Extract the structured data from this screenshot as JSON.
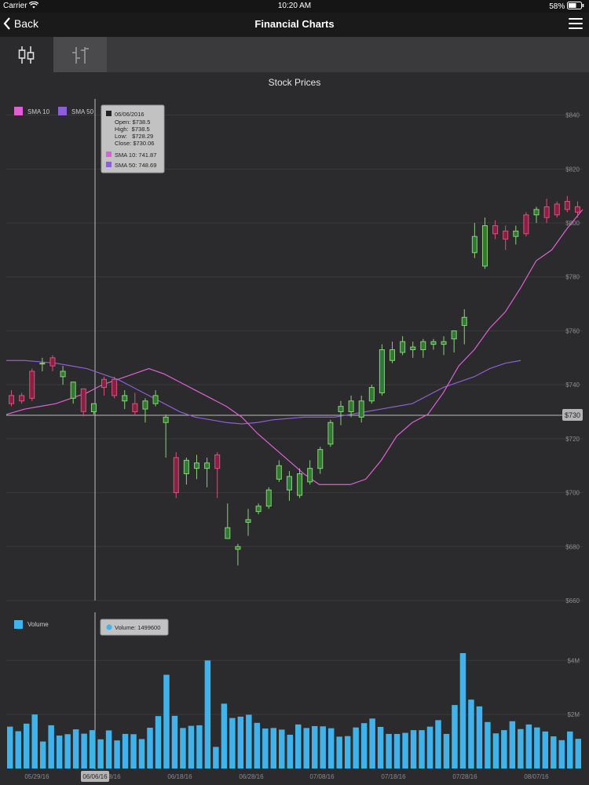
{
  "status_bar": {
    "carrier": "Carrier",
    "time": "10:20 AM",
    "battery": "58%"
  },
  "nav": {
    "back_label": "Back",
    "title": "Financial Charts"
  },
  "tabs": [
    {
      "icon": "candlestick-icon"
    },
    {
      "icon": "ohlc-icon"
    }
  ],
  "chart_data": [
    {
      "type": "candlestick",
      "title": "Stock Prices",
      "ylim": [
        660,
        846
      ],
      "y_ticks": [
        "$660",
        "$680",
        "$700",
        "$720",
        "$740",
        "$760",
        "$780",
        "$800",
        "$820",
        "$840"
      ],
      "x_ticks": [
        "05/29/16",
        "06/08/16",
        "06/18/16",
        "06/28/16",
        "07/08/16",
        "07/18/16",
        "07/28/16",
        "08/07/16"
      ],
      "crosshair_price": "$730",
      "crosshair_date": "06/06/16",
      "legend": [
        {
          "name": "SMA 10",
          "color": "#e05fd6"
        },
        {
          "name": "SMA 50",
          "color": "#8e5ed6"
        }
      ],
      "tooltip": {
        "date": "06/06/2016",
        "open": "Open: $738.5",
        "high": "High:  $738.5",
        "low": "Low:   $728.29",
        "close": "Close: $730.06",
        "sma10": "SMA 10: 741.87",
        "sma50": "SMA 50: 748.69"
      },
      "candles": [
        {
          "o": 736,
          "c": 733,
          "h": 738,
          "l": 732
        },
        {
          "o": 736,
          "c": 734,
          "h": 737,
          "l": 733
        },
        {
          "o": 745,
          "c": 735,
          "h": 746,
          "l": 734
        },
        {
          "o": 748,
          "c": 748,
          "h": 750,
          "l": 745
        },
        {
          "o": 750,
          "c": 747,
          "h": 751,
          "l": 745
        },
        {
          "o": 743,
          "c": 745,
          "h": 747,
          "l": 740
        },
        {
          "o": 735,
          "c": 741,
          "h": 741,
          "l": 733
        },
        {
          "o": 738.5,
          "c": 730.06,
          "h": 738.5,
          "l": 728.29
        },
        {
          "o": 730,
          "c": 733,
          "h": 733,
          "l": 729
        },
        {
          "o": 742,
          "c": 739,
          "h": 743,
          "l": 736
        },
        {
          "o": 742,
          "c": 736,
          "h": 743,
          "l": 735
        },
        {
          "o": 734,
          "c": 736,
          "h": 738,
          "l": 731
        },
        {
          "o": 733,
          "c": 730,
          "h": 737,
          "l": 729
        },
        {
          "o": 731,
          "c": 734,
          "h": 735,
          "l": 726
        },
        {
          "o": 733,
          "c": 736,
          "h": 738,
          "l": 732
        },
        {
          "o": 726,
          "c": 728,
          "h": 729,
          "l": 713
        },
        {
          "o": 713,
          "c": 700,
          "h": 715,
          "l": 698
        },
        {
          "o": 707,
          "c": 712,
          "h": 713,
          "l": 703
        },
        {
          "o": 709,
          "c": 711,
          "h": 714,
          "l": 705
        },
        {
          "o": 709,
          "c": 711,
          "h": 713,
          "l": 702
        },
        {
          "o": 714,
          "c": 709,
          "h": 715,
          "l": 698
        },
        {
          "o": 683,
          "c": 687,
          "h": 696,
          "l": 683
        },
        {
          "o": 679,
          "c": 680,
          "h": 681,
          "l": 673
        },
        {
          "o": 689,
          "c": 690,
          "h": 694,
          "l": 684
        },
        {
          "o": 693,
          "c": 695,
          "h": 696,
          "l": 692
        },
        {
          "o": 695,
          "c": 701,
          "h": 702,
          "l": 694
        },
        {
          "o": 705,
          "c": 710,
          "h": 712,
          "l": 704
        },
        {
          "o": 701,
          "c": 706,
          "h": 708,
          "l": 697
        },
        {
          "o": 699,
          "c": 707,
          "h": 709,
          "l": 698
        },
        {
          "o": 704,
          "c": 709,
          "h": 712,
          "l": 703
        },
        {
          "o": 709,
          "c": 716,
          "h": 717,
          "l": 707
        },
        {
          "o": 718,
          "c": 726,
          "h": 727,
          "l": 717
        },
        {
          "o": 730,
          "c": 732,
          "h": 734,
          "l": 725
        },
        {
          "o": 730,
          "c": 734,
          "h": 736,
          "l": 728
        },
        {
          "o": 728,
          "c": 734,
          "h": 736,
          "l": 726
        },
        {
          "o": 734,
          "c": 739,
          "h": 740,
          "l": 733
        },
        {
          "o": 737,
          "c": 753,
          "h": 755,
          "l": 736
        },
        {
          "o": 749,
          "c": 753,
          "h": 756,
          "l": 748
        },
        {
          "o": 752,
          "c": 756,
          "h": 758,
          "l": 751
        },
        {
          "o": 753,
          "c": 754,
          "h": 756,
          "l": 750
        },
        {
          "o": 753,
          "c": 756,
          "h": 757,
          "l": 750
        },
        {
          "o": 755,
          "c": 756,
          "h": 757,
          "l": 753
        },
        {
          "o": 755,
          "c": 756,
          "h": 758,
          "l": 751
        },
        {
          "o": 757,
          "c": 760,
          "h": 760,
          "l": 752
        },
        {
          "o": 762,
          "c": 765,
          "h": 768,
          "l": 755
        },
        {
          "o": 789,
          "c": 795,
          "h": 800,
          "l": 787
        },
        {
          "o": 784,
          "c": 799,
          "h": 802,
          "l": 783
        },
        {
          "o": 799,
          "c": 796,
          "h": 801,
          "l": 794
        },
        {
          "o": 797,
          "c": 794,
          "h": 799,
          "l": 790
        },
        {
          "o": 795,
          "c": 797,
          "h": 799,
          "l": 792
        },
        {
          "o": 803,
          "c": 796,
          "h": 804,
          "l": 795
        },
        {
          "o": 803,
          "c": 805,
          "h": 806,
          "l": 800
        },
        {
          "o": 806,
          "c": 802,
          "h": 809,
          "l": 800
        },
        {
          "o": 807,
          "c": 803,
          "h": 808,
          "l": 802
        },
        {
          "o": 808,
          "c": 805,
          "h": 810,
          "l": 804
        },
        {
          "o": 806,
          "c": 804,
          "h": 808,
          "l": 802
        }
      ],
      "sma10": [
        [
          0,
          729
        ],
        [
          12,
          731
        ],
        [
          22,
          732
        ],
        [
          32,
          733
        ],
        [
          42,
          735
        ],
        [
          52,
          737
        ],
        [
          62,
          740
        ],
        [
          72,
          742
        ],
        [
          82,
          744
        ],
        [
          92,
          746
        ],
        [
          102,
          744
        ],
        [
          112,
          741
        ],
        [
          122,
          738
        ],
        [
          132,
          735
        ],
        [
          142,
          732
        ],
        [
          152,
          728
        ],
        [
          162,
          722
        ],
        [
          172,
          717
        ],
        [
          182,
          712
        ],
        [
          192,
          707
        ],
        [
          202,
          703
        ],
        [
          212,
          703
        ],
        [
          222,
          703
        ],
        [
          232,
          705
        ],
        [
          242,
          712
        ],
        [
          252,
          721
        ],
        [
          262,
          726
        ],
        [
          272,
          729
        ],
        [
          282,
          737
        ],
        [
          292,
          747
        ],
        [
          302,
          753
        ],
        [
          312,
          761
        ],
        [
          322,
          767
        ],
        [
          332,
          776
        ],
        [
          342,
          786
        ],
        [
          352,
          790
        ],
        [
          362,
          798
        ],
        [
          372,
          805
        ]
      ],
      "sma50": [
        [
          0,
          749
        ],
        [
          12,
          749
        ],
        [
          22,
          748.5
        ],
        [
          32,
          748
        ],
        [
          42,
          747
        ],
        [
          52,
          746
        ],
        [
          62,
          744
        ],
        [
          72,
          742
        ],
        [
          82,
          739
        ],
        [
          92,
          736
        ],
        [
          102,
          733
        ],
        [
          112,
          730
        ],
        [
          122,
          728
        ],
        [
          132,
          727
        ],
        [
          142,
          726
        ],
        [
          152,
          725.5
        ],
        [
          162,
          726
        ],
        [
          172,
          727
        ],
        [
          182,
          727.5
        ],
        [
          192,
          728
        ],
        [
          202,
          728
        ],
        [
          212,
          728
        ],
        [
          222,
          729
        ],
        [
          232,
          730
        ],
        [
          242,
          731
        ],
        [
          252,
          732
        ],
        [
          262,
          733
        ],
        [
          272,
          736
        ],
        [
          282,
          739
        ],
        [
          292,
          741
        ],
        [
          302,
          743
        ],
        [
          312,
          746
        ],
        [
          322,
          748
        ],
        [
          332,
          749
        ]
      ]
    },
    {
      "type": "bar",
      "legend": [
        {
          "name": "Volume",
          "color": "#3fb3ea"
        }
      ],
      "y_ticks": [
        "$4M",
        "$2M"
      ],
      "ylim": [
        0,
        5200000
      ],
      "tooltip": "Volume: 1499600",
      "values": [
        1550000,
        1380000,
        1660000,
        2000000,
        1000000,
        1600000,
        1220000,
        1270000,
        1450000,
        1290000,
        1420000,
        1080000,
        1410000,
        1040000,
        1280000,
        1270000,
        1090000,
        1510000,
        1940000,
        3470000,
        1950000,
        1500000,
        1580000,
        1600000,
        4000000,
        800000,
        2400000,
        1870000,
        1920000,
        1990000,
        1690000,
        1480000,
        1500000,
        1440000,
        1250000,
        1630000,
        1500000,
        1570000,
        1560000,
        1490000,
        1180000,
        1200000,
        1520000,
        1680000,
        1850000,
        1540000,
        1280000,
        1280000,
        1320000,
        1420000,
        1420000,
        1550000,
        1790000,
        1280000,
        2350000,
        4270000,
        2550000,
        2300000,
        1720000,
        1300000,
        1420000,
        1750000,
        1460000,
        1630000,
        1520000,
        1370000,
        1190000,
        1050000,
        1370000,
        1100000
      ]
    }
  ]
}
